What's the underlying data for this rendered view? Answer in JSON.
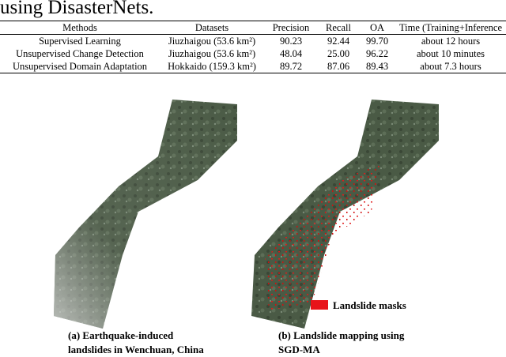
{
  "header": {
    "text": "using DisasterNets."
  },
  "table": {
    "columns": [
      "Methods",
      "Datasets",
      "Precision",
      "Recall",
      "OA",
      "Time (Training+Inference"
    ],
    "rows": [
      [
        "Supervised Learning",
        "Jiuzhaigou (53.6 km²)",
        "90.23",
        "92.44",
        "99.70",
        "about 12 hours"
      ],
      [
        "Unsupervised Change Detection",
        "Jiuzhaigou (53.6 km²)",
        "48.04",
        "25.00",
        "96.22",
        "about 10 minutes"
      ],
      [
        "Unsupervised Domain Adaptation",
        "Hokkaido (159.3 km²)",
        "89.72",
        "87.06",
        "89.43",
        "about 7.3 hours"
      ]
    ]
  },
  "figure": {
    "legend": "Landslide masks",
    "captions": [
      [
        "(a) Earthquake-induced",
        "landslides in Wenchuan, China"
      ],
      [
        "(b) Landslide mapping using",
        "SGD-MA"
      ]
    ]
  }
}
